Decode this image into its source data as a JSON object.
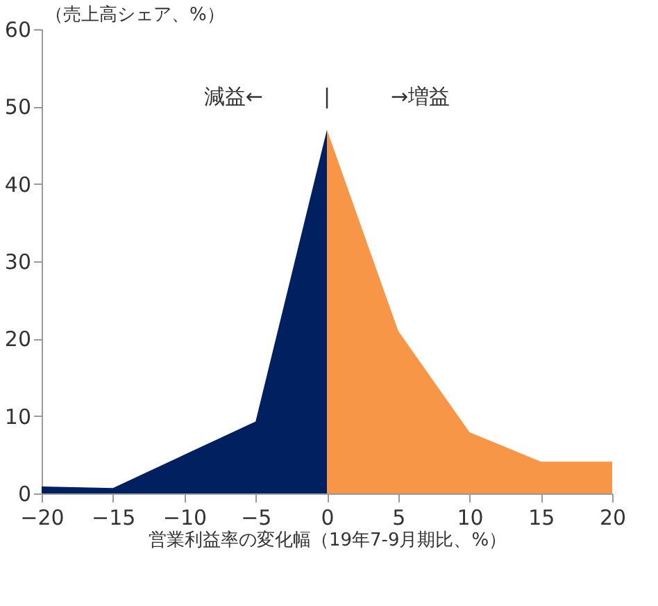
{
  "chart_data": {
    "type": "area",
    "xlabel": "営業利益率の変化幅（19年7-9月期比、%）",
    "ylabel": "（売上高シェア、%）",
    "series": [
      {
        "color": "#002060",
        "x": [
          -20,
          -15,
          -10,
          -5,
          0
        ],
        "values": [
          0.9,
          0.7,
          5,
          9.3,
          47
        ]
      },
      {
        "color": "#f79646",
        "x": [
          0,
          5,
          10,
          15,
          20
        ],
        "values": [
          47,
          21,
          7.9,
          4.1,
          4.1
        ]
      }
    ],
    "annotations": [
      "減益←",
      "|",
      "→増益"
    ],
    "xlim": [
      -20,
      20
    ],
    "xticks": [
      -20,
      -15,
      -10,
      -5,
      0,
      5,
      10,
      15,
      20
    ],
    "ylim": [
      0,
      60
    ],
    "yticks": [
      0,
      10,
      20,
      30,
      40,
      50,
      60
    ],
    "grid": false
  }
}
